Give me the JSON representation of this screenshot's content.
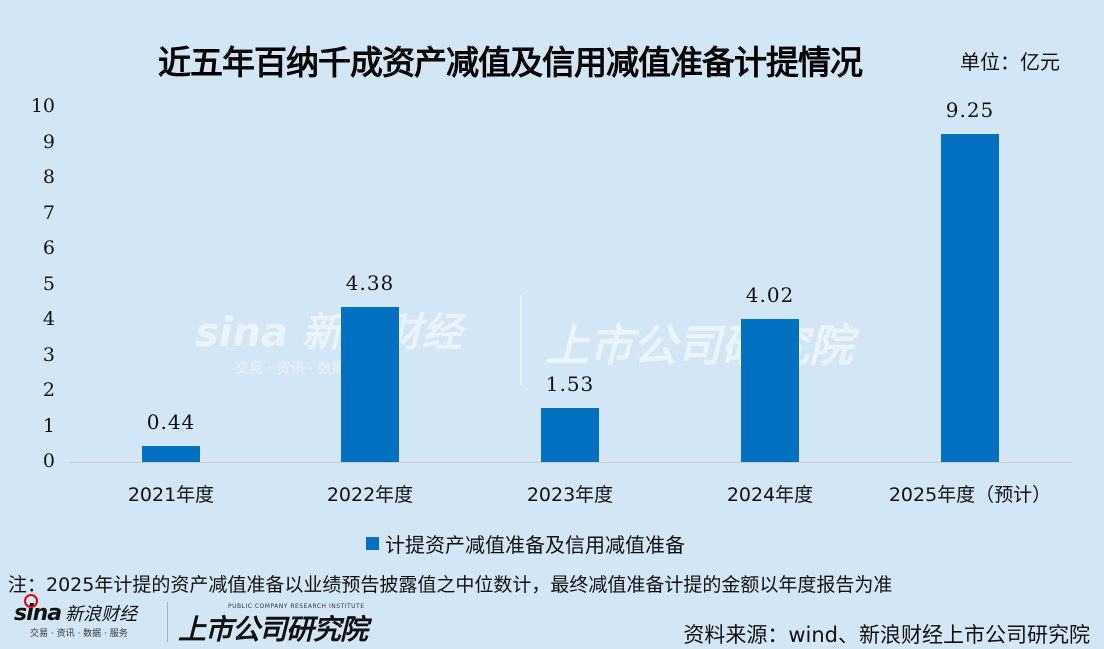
{
  "header": {
    "title": "近五年百纳千成资产减值及信用减值准备计提情况",
    "unit": "单位：亿元"
  },
  "chart_data": {
    "type": "bar",
    "title": "近五年百纳千成资产减值及信用减值准备计提情况",
    "unit": "亿元",
    "categories": [
      "2021年度",
      "2022年度",
      "2023年度",
      "2024年度",
      "2025年度（预计）"
    ],
    "series": [
      {
        "name": "计提资产减值准备及信用减值准备",
        "color": "#0070c0",
        "values": [
          0.44,
          4.38,
          1.53,
          4.02,
          9.25
        ]
      }
    ],
    "data_labels": [
      "0.44",
      "4.38",
      "1.53",
      "4.02",
      "9.25"
    ],
    "xlabel": "",
    "ylabel": "",
    "ylim": [
      0,
      10
    ],
    "yticks": [
      "0",
      "1",
      "2",
      "3",
      "4",
      "5",
      "6",
      "7",
      "8",
      "9",
      "10"
    ],
    "grid": false,
    "legend_position": "bottom"
  },
  "footer": {
    "note": "注：2025年计提的资产减值准备以业绩预告披露值之中位数计，最终减值准备计提的金额以年度报告为准",
    "source": "资料来源：wind、新浪财经上市公司研究院",
    "logo_sina": {
      "mark": "sina",
      "name": "新浪财经",
      "tagline": "交易 · 资讯 · 数据 · 服务"
    },
    "logo_institute": {
      "name": "上市公司研究院",
      "english": "PUBLIC COMPANY RESEARCH INSTITUTE"
    }
  },
  "watermark": {
    "sina": "sina 新浪财经",
    "tagline": "交易 · 资讯 · 数据 · 服务",
    "institute": "上市公司研究院"
  }
}
